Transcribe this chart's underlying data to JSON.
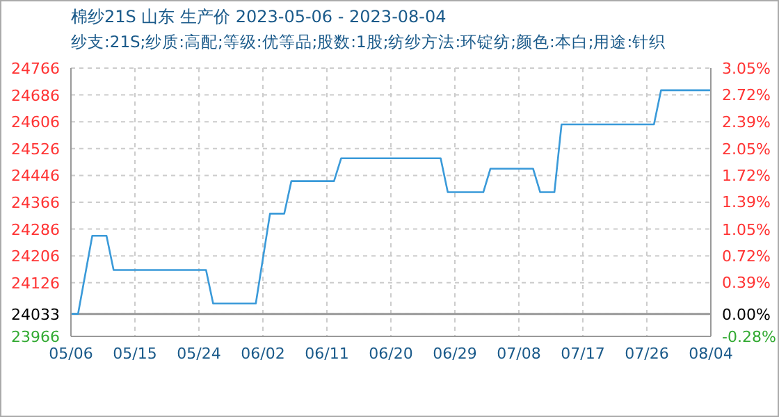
{
  "chart_data": {
    "type": "line",
    "title": "棉纱21S 山东 生产价 2023-05-06 - 2023-08-04",
    "subtitle": "纱支:21S;纱质:高配;等级:优等品;股数:1股;纺纱方法:环锭纺;颜色:本白;用途:针织",
    "x": [
      "2023-05-06",
      "2023-05-07",
      "2023-05-09",
      "2023-05-11",
      "2023-05-12",
      "2023-05-25",
      "2023-05-26",
      "2023-06-01",
      "2023-06-03",
      "2023-06-05",
      "2023-06-06",
      "2023-06-12",
      "2023-06-13",
      "2023-06-27",
      "2023-06-28",
      "2023-07-03",
      "2023-07-04",
      "2023-07-10",
      "2023-07-11",
      "2023-07-13",
      "2023-07-14",
      "2023-07-27",
      "2023-07-28",
      "2023-08-04"
    ],
    "series": [
      {
        "color": "#3a9ad9",
        "values": [
          24033,
          24033,
          24266,
          24266,
          24164,
          24164,
          24064,
          24064,
          24332,
          24332,
          24429,
          24429,
          24497,
          24497,
          24396,
          24396,
          24466,
          24466,
          24396,
          24396,
          24598,
          24598,
          24700,
          24700
        ]
      }
    ],
    "xlim": [
      "2023-05-06",
      "2023-08-04"
    ],
    "xticks": [
      {
        "value": "2023-05-06",
        "label": "05/06"
      },
      {
        "value": "2023-05-15",
        "label": "05/15"
      },
      {
        "value": "2023-05-24",
        "label": "05/24"
      },
      {
        "value": "2023-06-02",
        "label": "06/02"
      },
      {
        "value": "2023-06-11",
        "label": "06/11"
      },
      {
        "value": "2023-06-20",
        "label": "06/20"
      },
      {
        "value": "2023-06-29",
        "label": "06/29"
      },
      {
        "value": "2023-07-08",
        "label": "07/08"
      },
      {
        "value": "2023-07-17",
        "label": "07/17"
      },
      {
        "value": "2023-07-26",
        "label": "07/26"
      },
      {
        "value": "2023-08-04",
        "label": "08/04"
      }
    ],
    "ylim": [
      23966,
      24766
    ],
    "yticks": [
      23966,
      24033,
      24126,
      24206,
      24286,
      24366,
      24446,
      24526,
      24606,
      24686,
      24766
    ],
    "y2lim": [
      -0.28,
      3.05
    ],
    "y2ticks": [
      {
        "value": -0.28,
        "label": "-0.28%"
      },
      {
        "value": 0,
        "label": "0.00%"
      },
      {
        "value": 0.39,
        "label": "0.39%"
      },
      {
        "value": 0.72,
        "label": "0.72%"
      },
      {
        "value": 1.05,
        "label": "1.05%"
      },
      {
        "value": 1.39,
        "label": "1.39%"
      },
      {
        "value": 1.72,
        "label": "1.72%"
      },
      {
        "value": 2.05,
        "label": "2.05%"
      },
      {
        "value": 2.39,
        "label": "2.39%"
      },
      {
        "value": 2.72,
        "label": "2.72%"
      },
      {
        "value": 3.05,
        "label": "3.05%"
      }
    ],
    "ref_lines": [
      {
        "axis": "y",
        "value": 24033,
        "color": "#999999"
      }
    ],
    "grid": true,
    "line_style": "solid",
    "marker": "none"
  }
}
